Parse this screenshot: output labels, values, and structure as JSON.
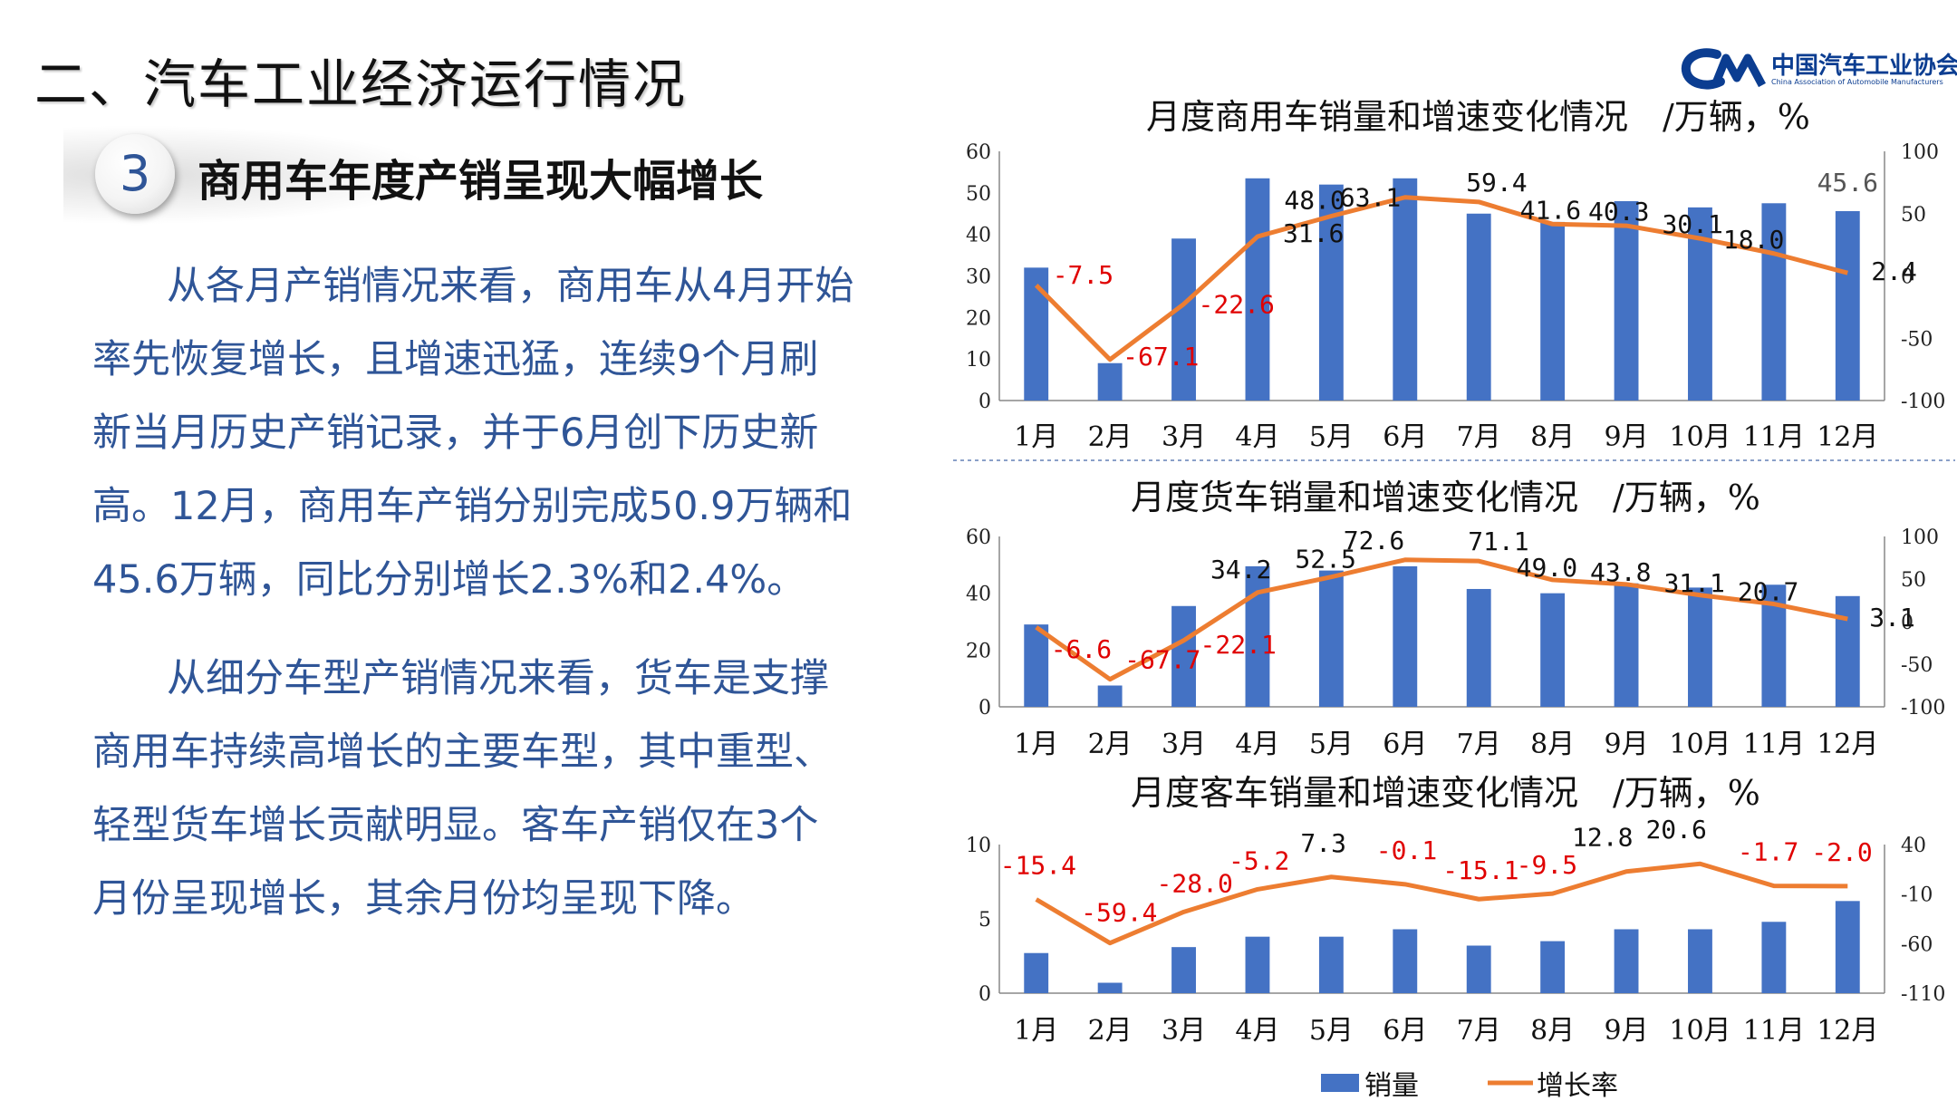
{
  "page": {
    "title": "二、汽车工业经济运行情况",
    "logo": {
      "text_cn": "中国汽车工业协会",
      "text_en": "China Association of Automobile Manufacturers"
    },
    "section": {
      "number": "3",
      "title": "商用车年度产销呈现大幅增长"
    },
    "paragraphs": [
      [
        "从各月产销情况来看，商用车从4月开始",
        "率先恢复增长，且增速迅猛，连续9个月刷",
        "新当月历史产销记录，并于6月创下历史新",
        "高。12月，商用车产销分别完成50.9万辆和",
        "45.6万辆，同比分别增长2.3%和2.4%。"
      ],
      [
        "从细分车型产销情况来看，货车是支撑",
        "商用车持续高增长的主要车型，其中重型、",
        "轻型货车增长贡献明显。客车产销仅在3个",
        "月份呈现增长，其余月份均呈现下降。"
      ]
    ],
    "legend": [
      {
        "name": "销量",
        "color": "#4472c4"
      },
      {
        "name": "增长率",
        "color": "#ed7d31"
      }
    ]
  },
  "chart_data": [
    {
      "type": "bar",
      "title": "月度商用车销量和增速变化情况　/万辆，%",
      "categories": [
        "1月",
        "2月",
        "3月",
        "4月",
        "5月",
        "6月",
        "7月",
        "8月",
        "9月",
        "10月",
        "11月",
        "12月"
      ],
      "series": [
        {
          "name": "销量",
          "type": "bar",
          "axis": "left",
          "color": "#4472c4",
          "values": [
            32,
            9,
            39,
            53.5,
            52,
            53.5,
            45,
            43,
            48,
            46.5,
            47.5,
            45.6
          ]
        },
        {
          "name": "增长率",
          "type": "line",
          "axis": "right",
          "color": "#ed7d31",
          "values": [
            -7.5,
            -67.1,
            -22.6,
            31.6,
            48.0,
            63.1,
            59.4,
            41.6,
            40.3,
            30.1,
            18.0,
            2.4
          ]
        }
      ],
      "bar_labels": {
        "12": "45.6"
      },
      "ylim_left": [
        0,
        60
      ],
      "yticks_left": [
        "60",
        "50",
        "40",
        "30",
        "20",
        "10",
        "0"
      ],
      "ylim_right": [
        -100,
        100
      ],
      "yticks_right": [
        "100",
        "50",
        "0",
        "-50",
        "-100"
      ]
    },
    {
      "type": "bar",
      "title": "月度货车销量和增速变化情况　/万辆，%",
      "categories": [
        "1月",
        "2月",
        "3月",
        "4月",
        "5月",
        "6月",
        "7月",
        "8月",
        "9月",
        "10月",
        "11月",
        "12月"
      ],
      "series": [
        {
          "name": "销量",
          "type": "bar",
          "axis": "left",
          "color": "#4472c4",
          "values": [
            29,
            7.5,
            35.5,
            49.5,
            48,
            49.5,
            41.5,
            40,
            43.5,
            42,
            43,
            39
          ]
        },
        {
          "name": "增长率",
          "type": "line",
          "axis": "right",
          "color": "#ed7d31",
          "values": [
            -6.6,
            -67.7,
            -22.1,
            34.2,
            52.5,
            72.6,
            71.1,
            49.0,
            43.8,
            31.1,
            20.7,
            3.1
          ]
        }
      ],
      "ylim_left": [
        0,
        60
      ],
      "yticks_left": [
        "60",
        "40",
        "20",
        "0"
      ],
      "ylim_right": [
        -100,
        100
      ],
      "yticks_right": [
        "100",
        "50",
        "0",
        "-50",
        "-100"
      ]
    },
    {
      "type": "bar",
      "title": "月度客车销量和增速变化情况　/万辆，%",
      "categories": [
        "1月",
        "2月",
        "3月",
        "4月",
        "5月",
        "6月",
        "7月",
        "8月",
        "9月",
        "10月",
        "11月",
        "12月"
      ],
      "series": [
        {
          "name": "销量",
          "type": "bar",
          "axis": "left",
          "color": "#4472c4",
          "values": [
            2.7,
            0.7,
            3.1,
            3.8,
            3.8,
            4.3,
            3.2,
            3.5,
            4.3,
            4.3,
            4.8,
            6.2
          ]
        },
        {
          "name": "增长率",
          "type": "line",
          "axis": "right",
          "color": "#ed7d31",
          "values": [
            -15.4,
            -59.4,
            -28.0,
            -5.2,
            7.3,
            -0.1,
            -15.1,
            -9.5,
            12.8,
            20.6,
            -1.7,
            -2.0
          ]
        }
      ],
      "ylim_left": [
        0,
        10
      ],
      "yticks_left": [
        "10",
        "5",
        "0"
      ],
      "ylim_right": [
        -110,
        40
      ],
      "yticks_right": [
        "40",
        "-10",
        "-60",
        "-110"
      ]
    }
  ]
}
